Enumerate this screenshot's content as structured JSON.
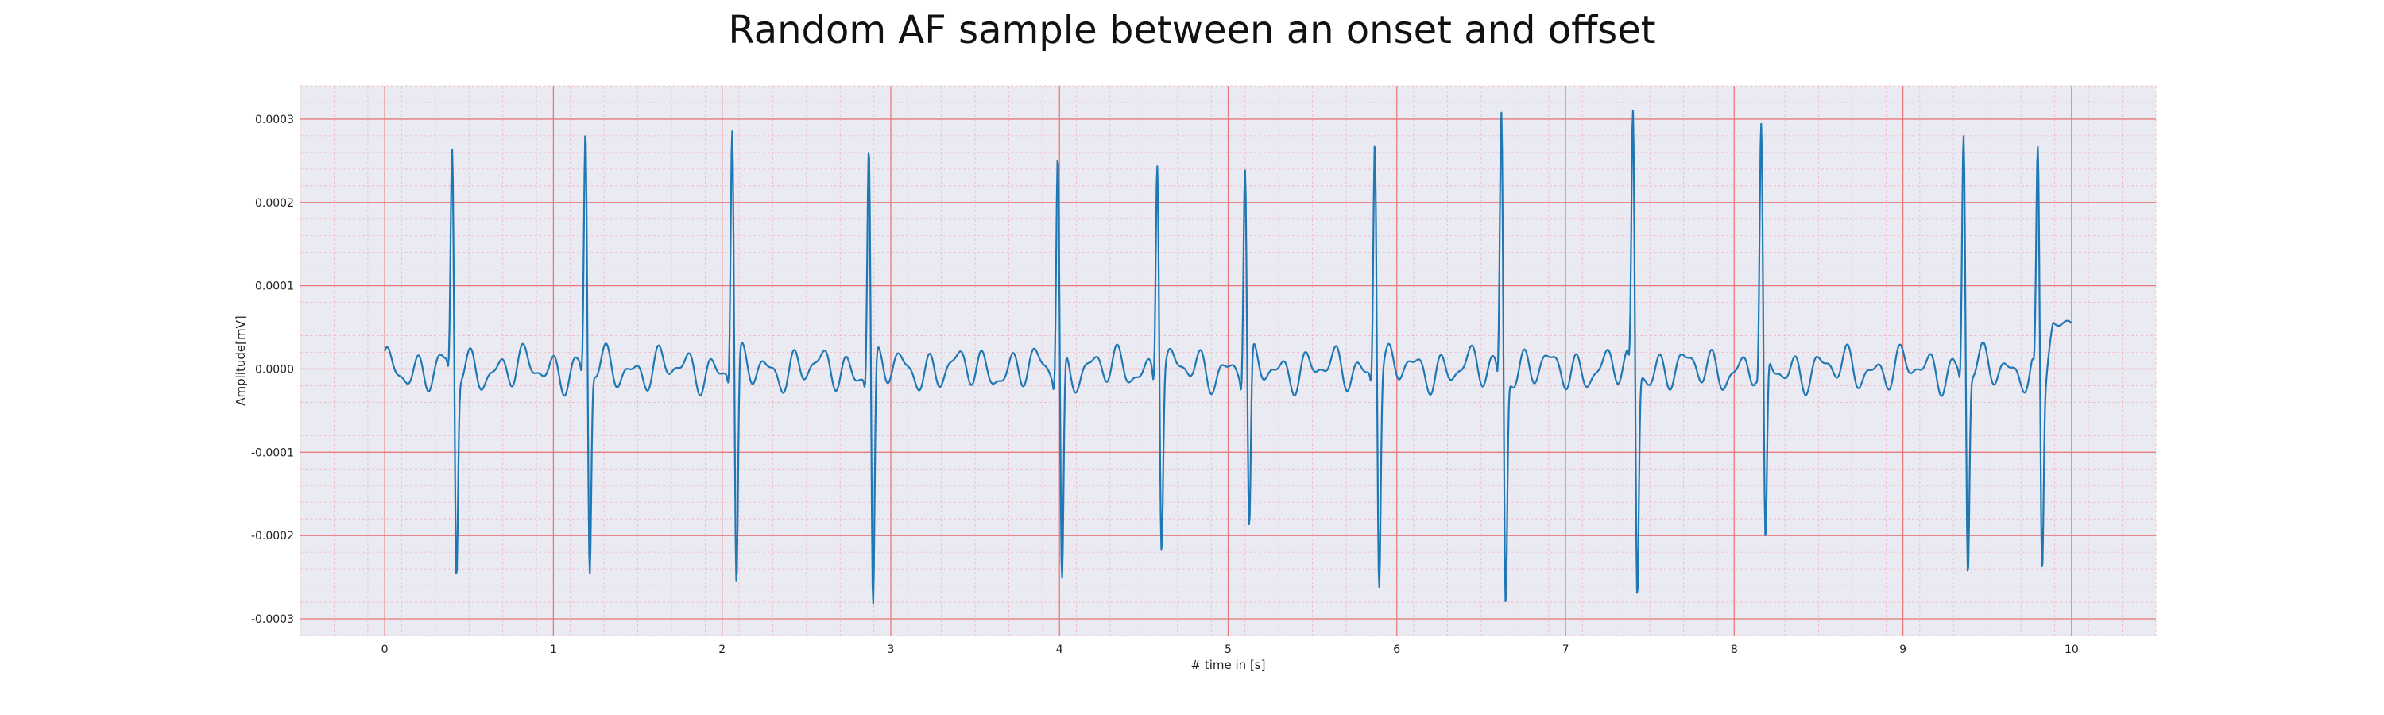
{
  "chart_data": {
    "type": "line",
    "title": "Random AF sample between an onset and offset",
    "xlabel": "# time in [s]",
    "ylabel": "Amplitude[mV]",
    "xlim": [
      -0.5,
      10.5
    ],
    "ylim": [
      -0.00032,
      0.00034
    ],
    "xticks": [
      0,
      1,
      2,
      3,
      4,
      5,
      6,
      7,
      8,
      9,
      10
    ],
    "xtick_labels": [
      "0",
      "1",
      "2",
      "3",
      "4",
      "5",
      "6",
      "7",
      "8",
      "9",
      "10"
    ],
    "yticks": [
      -0.0003,
      -0.0002,
      -0.0001,
      0.0,
      0.0001,
      0.0002,
      0.0003
    ],
    "ytick_labels": [
      "-0.0003",
      "-0.0002",
      "-0.0001",
      "0.0000",
      "0.0001",
      "0.0002",
      "0.0003"
    ],
    "grid": true,
    "background": "#EAEAF2",
    "major_grid_color": "#E8797A",
    "minor_grid_color": "#F2B6C4",
    "series": [
      {
        "color": "#1F77B4",
        "r_peaks": [
          {
            "t": 0.4,
            "up": 0.000245,
            "down": -0.000235
          },
          {
            "t": 1.19,
            "up": 0.00027,
            "down": -0.000237
          },
          {
            "t": 2.06,
            "up": 0.000285,
            "down": -0.000258
          },
          {
            "t": 2.87,
            "up": 0.000265,
            "down": -0.000285
          },
          {
            "t": 3.99,
            "up": 0.000258,
            "down": -0.000253
          },
          {
            "t": 4.58,
            "up": 0.000258,
            "down": -0.00019
          },
          {
            "t": 5.1,
            "up": 0.000237,
            "down": -0.000198
          },
          {
            "t": 5.87,
            "up": 0.000278,
            "down": -0.000235
          },
          {
            "t": 6.62,
            "up": 0.000305,
            "down": -0.000265
          },
          {
            "t": 7.4,
            "up": 0.00029,
            "down": -0.00026
          },
          {
            "t": 8.16,
            "up": 0.000263,
            "down": -0.000223
          },
          {
            "t": 9.36,
            "up": 0.000273,
            "down": -0.000232
          },
          {
            "t": 9.8,
            "up": 0.000237,
            "down": -0.00023
          }
        ],
        "end": {
          "t": 10.0,
          "value": 5.5e-05
        },
        "baseline_wave": {
          "amplitude": 3e-05,
          "period": 0.16
        }
      }
    ]
  }
}
